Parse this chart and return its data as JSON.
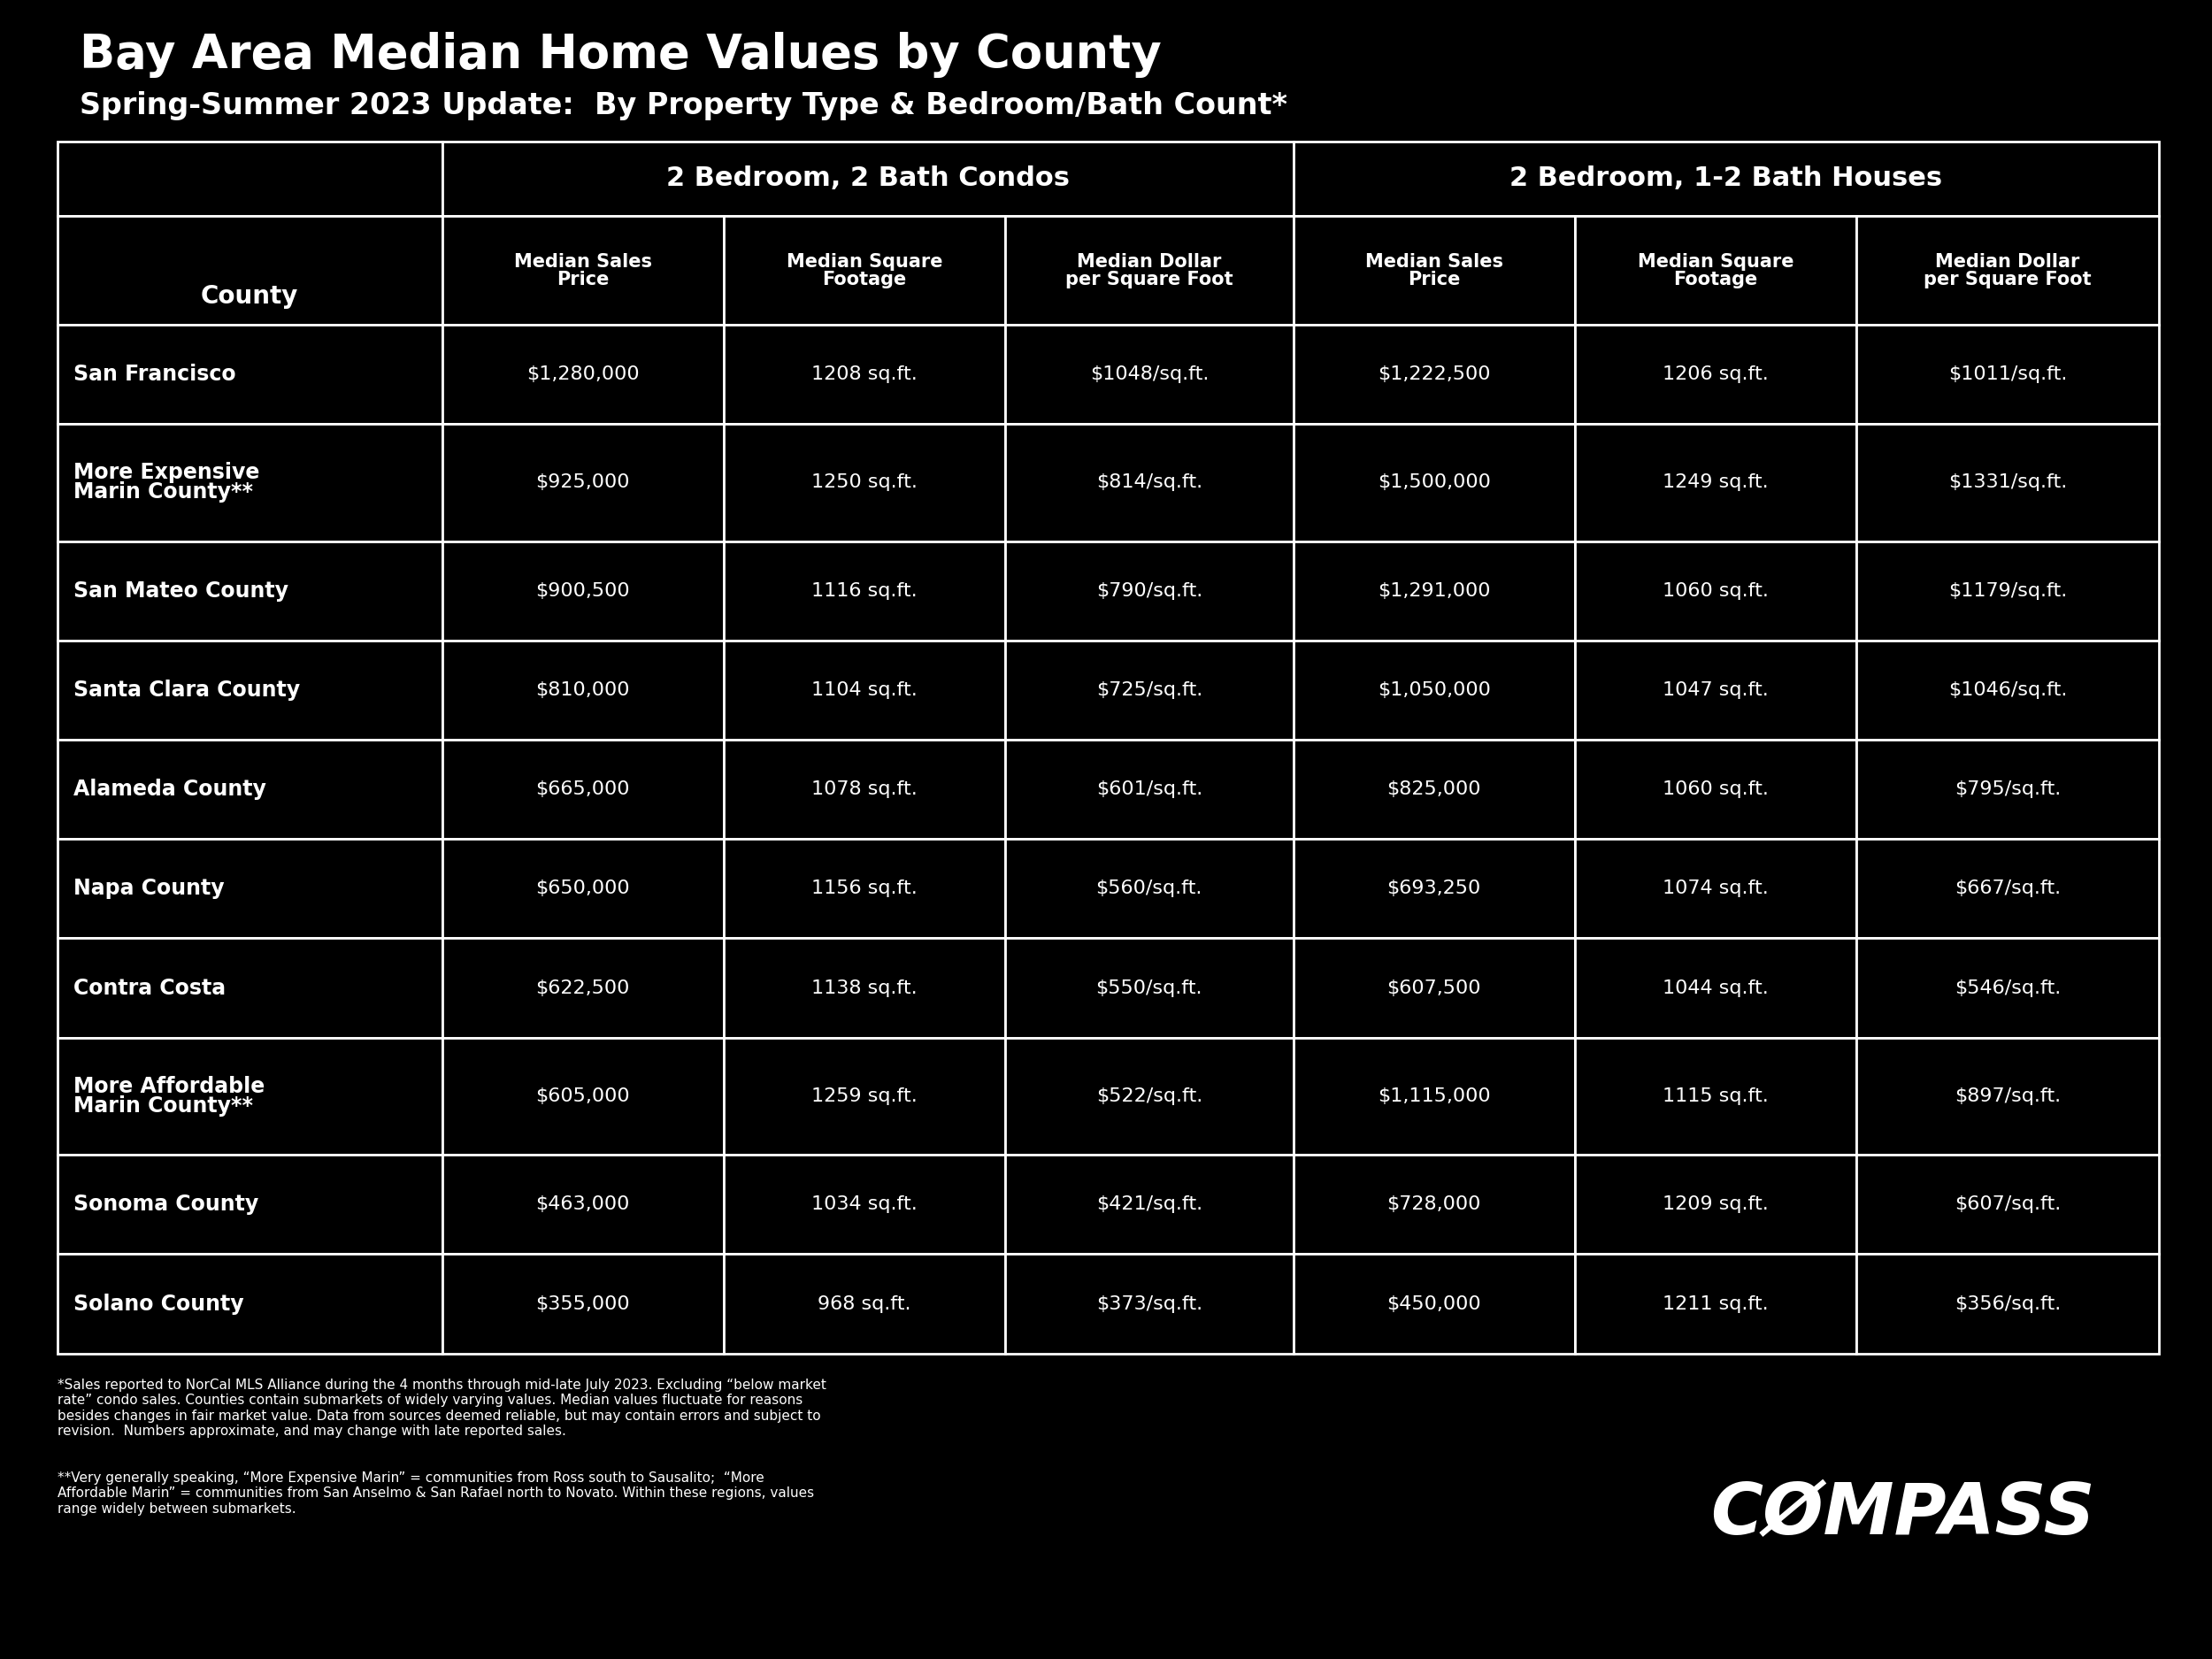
{
  "title": "Bay Area Median Home Values by County",
  "subtitle": "Spring-Summer 2023 Update:  By Property Type & Bedroom/Bath Count*",
  "background_color": "#000000",
  "text_color": "#ffffff",
  "col_group1_header": "2 Bedroom, 2 Bath Condos",
  "col_group2_header": "2 Bedroom, 1-2 Bath Houses",
  "col_headers_line1": [
    "",
    "Median Sales",
    "Median Square",
    "Median Dollar",
    "Median Sales",
    "Median Square",
    "Median Dollar"
  ],
  "col_headers_line2": [
    "County",
    "Price",
    "Footage",
    "per Square Foot",
    "Price",
    "Footage",
    "per Square Foot"
  ],
  "rows": [
    {
      "county": [
        "San Francisco"
      ],
      "condo_price": "$1,280,000",
      "condo_sqft": "1208 sq.ft.",
      "condo_psf": "$1048/sq.ft.",
      "house_price": "$1,222,500",
      "house_sqft": "1206 sq.ft.",
      "house_psf": "$1011/sq.ft."
    },
    {
      "county": [
        "More Expensive",
        "Marin County**"
      ],
      "condo_price": "$925,000",
      "condo_sqft": "1250 sq.ft.",
      "condo_psf": "$814/sq.ft.",
      "house_price": "$1,500,000",
      "house_sqft": "1249 sq.ft.",
      "house_psf": "$1331/sq.ft."
    },
    {
      "county": [
        "San Mateo County"
      ],
      "condo_price": "$900,500",
      "condo_sqft": "1116 sq.ft.",
      "condo_psf": "$790/sq.ft.",
      "house_price": "$1,291,000",
      "house_sqft": "1060 sq.ft.",
      "house_psf": "$1179/sq.ft."
    },
    {
      "county": [
        "Santa Clara County"
      ],
      "condo_price": "$810,000",
      "condo_sqft": "1104 sq.ft.",
      "condo_psf": "$725/sq.ft.",
      "house_price": "$1,050,000",
      "house_sqft": "1047 sq.ft.",
      "house_psf": "$1046/sq.ft."
    },
    {
      "county": [
        "Alameda County"
      ],
      "condo_price": "$665,000",
      "condo_sqft": "1078 sq.ft.",
      "condo_psf": "$601/sq.ft.",
      "house_price": "$825,000",
      "house_sqft": "1060 sq.ft.",
      "house_psf": "$795/sq.ft."
    },
    {
      "county": [
        "Napa County"
      ],
      "condo_price": "$650,000",
      "condo_sqft": "1156 sq.ft.",
      "condo_psf": "$560/sq.ft.",
      "house_price": "$693,250",
      "house_sqft": "1074 sq.ft.",
      "house_psf": "$667/sq.ft."
    },
    {
      "county": [
        "Contra Costa"
      ],
      "condo_price": "$622,500",
      "condo_sqft": "1138 sq.ft.",
      "condo_psf": "$550/sq.ft.",
      "house_price": "$607,500",
      "house_sqft": "1044 sq.ft.",
      "house_psf": "$546/sq.ft."
    },
    {
      "county": [
        "More Affordable",
        "Marin County**"
      ],
      "condo_price": "$605,000",
      "condo_sqft": "1259 sq.ft.",
      "condo_psf": "$522/sq.ft.",
      "house_price": "$1,115,000",
      "house_sqft": "1115 sq.ft.",
      "house_psf": "$897/sq.ft."
    },
    {
      "county": [
        "Sonoma County"
      ],
      "condo_price": "$463,000",
      "condo_sqft": "1034 sq.ft.",
      "condo_psf": "$421/sq.ft.",
      "house_price": "$728,000",
      "house_sqft": "1209 sq.ft.",
      "house_psf": "$607/sq.ft."
    },
    {
      "county": [
        "Solano County"
      ],
      "condo_price": "$355,000",
      "condo_sqft": "968 sq.ft.",
      "condo_psf": "$373/sq.ft.",
      "house_price": "$450,000",
      "house_sqft": "1211 sq.ft.",
      "house_psf": "$356/sq.ft."
    }
  ],
  "footnote1": "*Sales reported to NorCal MLS Alliance during the 4 months through mid-late July 2023. Excluding “below market\nrate” condo sales. Counties contain submarkets of widely varying values. Median values fluctuate for reasons\nbesides changes in fair market value. Data from sources deemed reliable, but may contain errors and subject to\nrevision.  Numbers approximate, and may change with late reported sales.",
  "footnote2": "**Very generally speaking, “More Expensive Marin” = communities from Ross south to Sausalito;  “More\nAffordable Marin” = communities from San Anselmo & San Rafael north to Novato. Within these regions, values\nrange widely between submarkets.",
  "compass_logo": "CØMPASS",
  "title_fontsize": 38,
  "subtitle_fontsize": 24,
  "group_header_fontsize": 22,
  "subheader_fontsize": 15,
  "data_fontsize": 16,
  "county_fontsize": 17,
  "footnote_fontsize": 11,
  "compass_fontsize": 58
}
